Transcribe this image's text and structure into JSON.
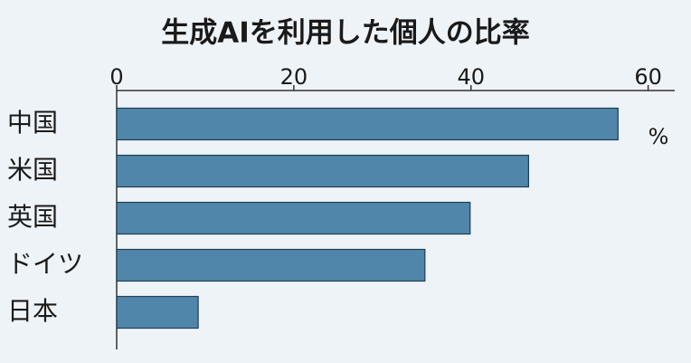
{
  "chart_data": {
    "type": "hbar",
    "title": "生成AIを利用した個人の比率",
    "unit": "%",
    "categories": [
      "中国",
      "米国",
      "英国",
      "ドイツ",
      "日本"
    ],
    "values": [
      56.6,
      46.5,
      39.9,
      34.8,
      9.2
    ],
    "color": "#4f86a9",
    "xlim": [
      0,
      63
    ],
    "xticks": [
      0,
      20,
      40,
      60
    ]
  }
}
